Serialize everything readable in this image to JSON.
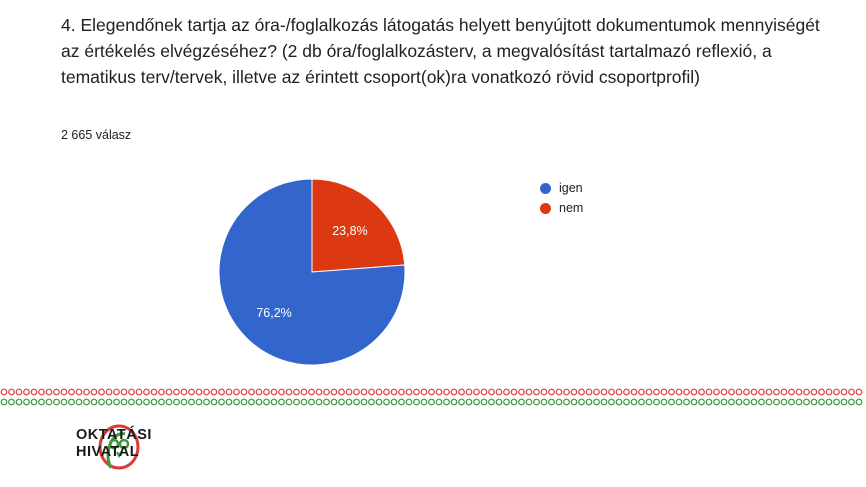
{
  "question": {
    "text": "4. Elegendőnek tartja az óra-/foglalkozás látogatás helyett benyújtott dokumentumok mennyiségét az értékelés elvégzéséhez? (2 db óra/foglalkozásterv, a megvalósítást tartalmazó reflexió, a tematikus terv/tervek, illetve az érintett csoport(ok)ra vonatkozó rövid csoportprofil)",
    "response_count": "2 665 válasz"
  },
  "chart_data": {
    "type": "pie",
    "title": "",
    "slices": [
      {
        "label": "igen",
        "value": 76.2,
        "display": "76,2%",
        "color": "#3366cc"
      },
      {
        "label": "nem",
        "value": 23.8,
        "display": "23,8%",
        "color": "#dc3912"
      }
    ],
    "legend_position": "right"
  },
  "footer": {
    "logo_line1": "OKTATÁSI",
    "logo_line2": "HIVATAL",
    "logo_icon": "owl-icon",
    "border_colors": [
      "#e04040",
      "#3a9a3a"
    ]
  }
}
